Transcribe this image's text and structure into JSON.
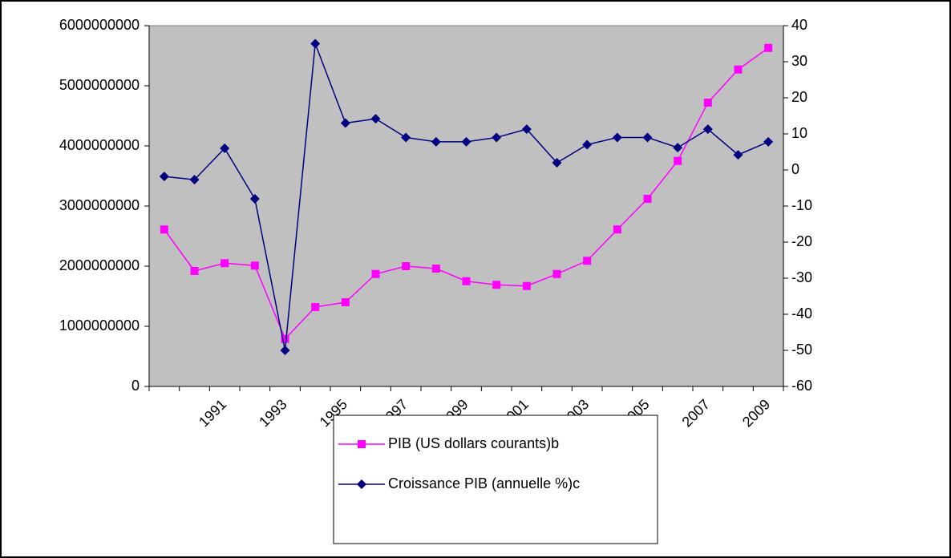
{
  "chart_data": {
    "type": "line",
    "categories": [
      null,
      null,
      "1991",
      null,
      "1993",
      null,
      "1995",
      null,
      "1997",
      null,
      "1999",
      null,
      "2001",
      null,
      "2003",
      null,
      "2005",
      null,
      "2007",
      null,
      "2009"
    ],
    "series": [
      {
        "name": "PIB (US dollars courants)b",
        "color": "#ff00ff",
        "marker": "square",
        "values": [
          2610000000,
          1920000000,
          2050000000,
          2010000000,
          790000000,
          1320000000,
          1400000000,
          1870000000,
          2000000000,
          1960000000,
          1750000000,
          1690000000,
          1670000000,
          1870000000,
          2090000000,
          2610000000,
          3120000000,
          3750000000,
          4720000000,
          5270000000,
          5630000000
        ]
      },
      {
        "name": "Croissance PIB (annuelle %)c",
        "color": "#000080",
        "marker": "diamond",
        "axis": "y2",
        "values": [
          -1.8,
          -2.7,
          6,
          -8,
          -50,
          35,
          13,
          14.2,
          9,
          7.8,
          7.8,
          9,
          11.3,
          2,
          7,
          9,
          9,
          6.2,
          11.3,
          4.2,
          7.8
        ]
      }
    ],
    "ylim": [
      0,
      6000000000
    ],
    "yticks": [
      0,
      1000000000,
      2000000000,
      3000000000,
      4000000000,
      5000000000,
      6000000000
    ],
    "y2lim": [
      -60,
      40
    ],
    "y2ticks": [
      -60,
      -50,
      -40,
      -30,
      -20,
      -10,
      0,
      10,
      20,
      30,
      40
    ],
    "plot_background": "#c0c0c0",
    "legend": "bottom"
  }
}
